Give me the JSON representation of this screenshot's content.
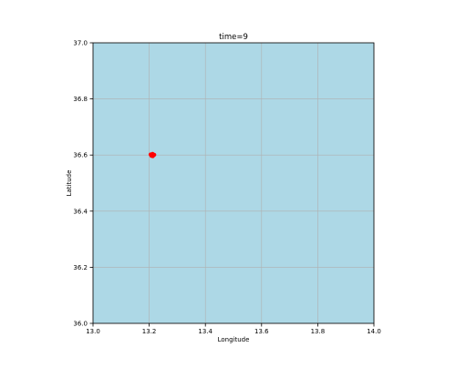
{
  "chart_data": {
    "type": "scatter",
    "title": "time=9",
    "xlabel": "Longitude",
    "ylabel": "Latitude",
    "xlim": [
      13.0,
      14.0
    ],
    "ylim": [
      36.0,
      37.0
    ],
    "xticks": [
      "13.0",
      "13.2",
      "13.4",
      "13.6",
      "13.8",
      "14.0"
    ],
    "yticks": [
      "36.0",
      "36.2",
      "36.4",
      "36.6",
      "36.8",
      "37.0"
    ],
    "grid": true,
    "background_color": "#add8e6",
    "grid_color": "#b0b0b0",
    "points": [
      {
        "x": 13.205,
        "y": 36.602,
        "color": "#ff0000"
      },
      {
        "x": 13.21,
        "y": 36.598,
        "color": "#ff0000"
      },
      {
        "x": 13.215,
        "y": 36.6,
        "color": "#ff0000"
      },
      {
        "x": 13.212,
        "y": 36.604,
        "color": "#ff0000"
      },
      {
        "x": 13.208,
        "y": 36.597,
        "color": "#ff0000"
      },
      {
        "x": 13.218,
        "y": 36.601,
        "color": "#ff0000"
      },
      {
        "x": 13.213,
        "y": 36.596,
        "color": "#ff0000"
      }
    ]
  }
}
